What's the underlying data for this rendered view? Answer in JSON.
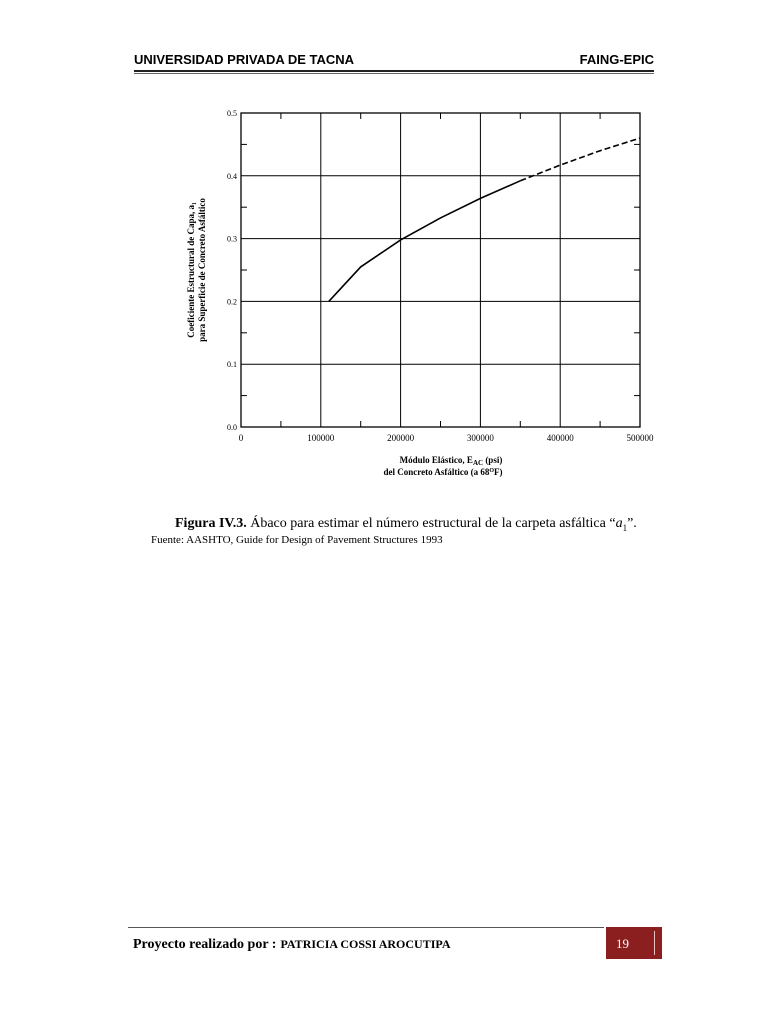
{
  "header": {
    "left": "UNIVERSIDAD PRIVADA DE TACNA",
    "right": "FAING-EPIC"
  },
  "chart_data": {
    "type": "line",
    "ylabel_line1": "Coeficiente Estructural de Capa, a₁",
    "ylabel_line2": "para Superficie de Concreto Asfáltico",
    "xlabel_line1_main": "Módulo Elástico, E",
    "xlabel_line1_sub": "AC",
    "xlabel_line1_unit": " (psi)",
    "xlabel_line2_main": "del Concreto Asfáltico (a 68",
    "xlabel_line2_sup": "O",
    "xlabel_line2_end": "F)",
    "xlim": [
      0,
      500000
    ],
    "ylim": [
      0.0,
      0.5
    ],
    "x_ticks": [
      "0",
      "100000",
      "200000",
      "300000",
      "400000",
      "500000"
    ],
    "y_ticks": [
      "0.0",
      "0.1",
      "0.2",
      "0.3",
      "0.4",
      "0.5"
    ],
    "grid": true,
    "series": [
      {
        "style": "solid",
        "x": [
          110000,
          150000,
          200000,
          250000,
          300000,
          350000
        ],
        "y": [
          0.2,
          0.255,
          0.298,
          0.333,
          0.364,
          0.392
        ]
      },
      {
        "style": "dashed",
        "x": [
          350000,
          400000,
          450000,
          500000
        ],
        "y": [
          0.392,
          0.417,
          0.44,
          0.46
        ]
      }
    ]
  },
  "caption": {
    "label": "Figura IV.3.",
    "text": " Ábaco para estimar el número estructural de la carpeta asfáltica “",
    "symbol": "a",
    "symbol_sub": "1",
    "end": "”."
  },
  "source": "Fuente: AASHTO, Guide for Design of Pavement Structures 1993",
  "footer": {
    "label": "Proyecto realizado por :",
    "name": "PATRICIA COSSI AROCUTIPA",
    "page": "19"
  },
  "colors": {
    "page_box": "#8b1f1f"
  }
}
